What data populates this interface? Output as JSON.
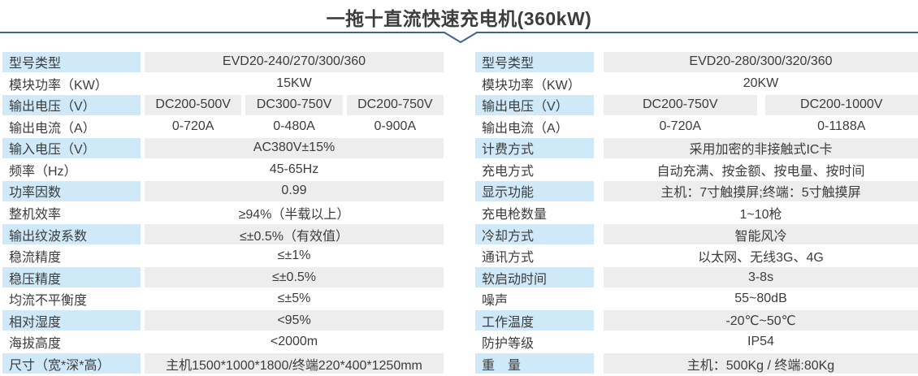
{
  "title": "一拖十直流快速充电机(360kW)",
  "colors": {
    "accent_line": "#41648c",
    "label_bg": "#cfe9f8",
    "value_bg": "#ededed",
    "text": "#3c3c3c"
  },
  "tables": [
    {
      "id": "left-spec-table",
      "rows": [
        {
          "label": "型号类型",
          "values": [
            "EVD20-240/270/300/360"
          ]
        },
        {
          "label": "模块功率（KW）",
          "values": [
            "15KW"
          ]
        },
        {
          "label": "输出电压（V）",
          "values": [
            "DC200-500V",
            "DC300-750V",
            "DC200-750V"
          ]
        },
        {
          "label": "输出电流（A）",
          "values": [
            "0-720A",
            "0-480A",
            "0-900A"
          ]
        },
        {
          "label": "输入电压（V）",
          "values": [
            "AC380V±15%"
          ]
        },
        {
          "label": "频率（Hz）",
          "values": [
            "45-65Hz"
          ]
        },
        {
          "label": "功率因数",
          "values": [
            "0.99"
          ]
        },
        {
          "label": "整机效率",
          "values": [
            "≥94%（半载以上）"
          ]
        },
        {
          "label": "输出纹波系数",
          "values": [
            "≤±0.5%（有效值）"
          ]
        },
        {
          "label": "稳流精度",
          "values": [
            "≤±1%"
          ]
        },
        {
          "label": "稳压精度",
          "values": [
            "≤±0.5%"
          ]
        },
        {
          "label": "均流不平衡度",
          "values": [
            "≤±5%"
          ]
        },
        {
          "label": "相对湿度",
          "values": [
            "<95%"
          ]
        },
        {
          "label": "海拔高度",
          "values": [
            "<2000m"
          ]
        },
        {
          "label": "尺寸（宽*深*高）",
          "values": [
            "主机1500*1000*1800/终端220*400*1250mm"
          ]
        }
      ]
    },
    {
      "id": "right-spec-table",
      "rows": [
        {
          "label": "型号类型",
          "values": [
            "EVD20-280/300/320/360"
          ]
        },
        {
          "label": "模块功率（KW）",
          "values": [
            "20KW"
          ]
        },
        {
          "label": "输出电压（V）",
          "values": [
            "DC200-750V",
            "DC200-1000V"
          ]
        },
        {
          "label": "输出电流（A）",
          "values": [
            "0-720A",
            "0-1188A"
          ]
        },
        {
          "label": "计费方式",
          "values": [
            "采用加密的非接触式IC卡"
          ]
        },
        {
          "label": "充电方式",
          "values": [
            "自动充满、按金额、按电量、按时间"
          ]
        },
        {
          "label": "显示功能",
          "values": [
            "主机：7寸触摸屏;终端：5寸触摸屏"
          ]
        },
        {
          "label": "充电枪数量",
          "values": [
            "1~10枪"
          ]
        },
        {
          "label": "冷却方式",
          "values": [
            "智能风冷"
          ]
        },
        {
          "label": "通讯方式",
          "values": [
            "以太网、无线3G、4G"
          ]
        },
        {
          "label": "软启动时间",
          "values": [
            "3-8s"
          ]
        },
        {
          "label": "噪声",
          "values": [
            "55~80dB"
          ]
        },
        {
          "label": "工作温度",
          "values": [
            "-20℃~50℃"
          ]
        },
        {
          "label": "防护等级",
          "values": [
            "IP54"
          ]
        },
        {
          "label": "重　量",
          "values": [
            "主机：500Kg / 终端:80Kg"
          ]
        }
      ]
    }
  ]
}
